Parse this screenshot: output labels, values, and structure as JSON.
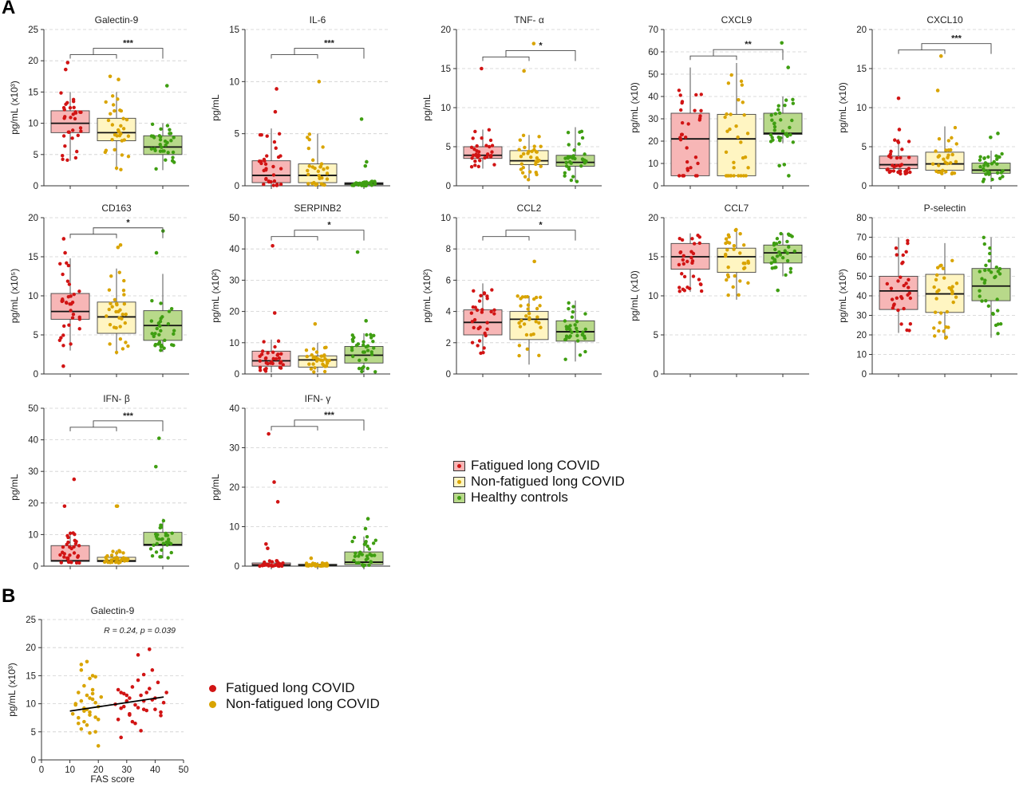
{
  "panel_labels": [
    "A",
    "B"
  ],
  "colors": {
    "fatigued_fill": "#f7b6b6",
    "fatigued_dot": "#d11414",
    "nonfatigued_fill": "#fff5c2",
    "nonfatigued_dot": "#d9a400",
    "healthy_fill": "#b8d98a",
    "healthy_dot": "#3f9e12"
  },
  "legend_a": {
    "items": [
      {
        "label": "Fatigued long COVID",
        "fill": "#f7b6b6",
        "dot": "#d11414"
      },
      {
        "label": "Non-fatigued long COVID",
        "fill": "#fff5c2",
        "dot": "#d9a400"
      },
      {
        "label": "Healthy controls",
        "fill": "#b8d98a",
        "dot": "#3f9e12"
      }
    ]
  },
  "legend_b": {
    "items": [
      {
        "label": "Fatigued long COVID",
        "dot": "#d11414"
      },
      {
        "label": "Non-fatigued long COVID",
        "dot": "#d9a400"
      }
    ]
  },
  "chart_data": [
    {
      "type": "box",
      "title": "Galectin-9",
      "ylabel": "pg/mL (x10³)",
      "ylim": [
        0,
        25
      ],
      "ticks": [
        0,
        5,
        10,
        15,
        20,
        25
      ],
      "groups": [
        "Fatigued long COVID",
        "Non-fatigued long COVID",
        "Healthy controls"
      ],
      "boxes": [
        {
          "q1": 8.5,
          "median": 10,
          "q3": 12,
          "lo": 4,
          "hi": 15
        },
        {
          "q1": 7.2,
          "median": 8.5,
          "q3": 10.8,
          "lo": 2.5,
          "hi": 15
        },
        {
          "q1": 5,
          "median": 6.2,
          "q3": 8,
          "lo": 2.5,
          "hi": 10
        }
      ],
      "outliers": [
        [
          19.7,
          18.6
        ],
        [
          17.5,
          17
        ],
        [
          16
        ]
      ],
      "significance": "***",
      "bracket_y": 22
    },
    {
      "type": "box",
      "title": "IL-6",
      "ylabel": "pg/mL",
      "ylim": [
        0,
        15
      ],
      "ticks": [
        0,
        5,
        10,
        15
      ],
      "groups": [
        "Fatigued long COVID",
        "Non-fatigued long COVID",
        "Healthy controls"
      ],
      "boxes": [
        {
          "q1": 0.3,
          "median": 1,
          "q3": 2.4,
          "lo": 0,
          "hi": 5.5
        },
        {
          "q1": 0.3,
          "median": 1,
          "q3": 2.1,
          "lo": 0,
          "hi": 5
        },
        {
          "q1": 0.1,
          "median": 0.2,
          "q3": 0.3,
          "lo": 0,
          "hi": 0.5
        }
      ],
      "outliers": [
        [
          9.3,
          7.1
        ],
        [
          10
        ],
        [
          6.4,
          2.3,
          1.9
        ]
      ],
      "significance": "***",
      "bracket_y": 13.2
    },
    {
      "type": "box",
      "title": "TNF- α",
      "ylabel": "pg/mL",
      "ylim": [
        0,
        20
      ],
      "ticks": [
        0,
        5,
        10,
        15,
        20
      ],
      "groups": [
        "Fatigued long COVID",
        "Non-fatigued long COVID",
        "Healthy controls"
      ],
      "boxes": [
        {
          "q1": 3.5,
          "median": 3.9,
          "q3": 5,
          "lo": 2.2,
          "hi": 7.2
        },
        {
          "q1": 2.7,
          "median": 3.2,
          "q3": 4.5,
          "lo": 0.6,
          "hi": 6.5
        },
        {
          "q1": 2.5,
          "median": 3,
          "q3": 3.9,
          "lo": 0.5,
          "hi": 7.5
        }
      ],
      "outliers": [
        [
          15
        ],
        [
          14.7,
          18.2
        ],
        []
      ],
      "significance": "*",
      "bracket_y": 17.3
    },
    {
      "type": "box",
      "title": "CXCL9",
      "ylabel": "pg/mL (x10)",
      "ylim": [
        0,
        70
      ],
      "ticks": [
        0,
        10,
        20,
        30,
        40,
        50,
        60,
        70
      ],
      "groups": [
        "Fatigued long COVID",
        "Non-fatigued long COVID",
        "Healthy controls"
      ],
      "boxes": [
        {
          "q1": 4.5,
          "median": 21,
          "q3": 32.5,
          "lo": 4.5,
          "hi": 53
        },
        {
          "q1": 4.5,
          "median": 21,
          "q3": 32,
          "lo": 4.5,
          "hi": 55
        },
        {
          "q1": 23,
          "median": 23.5,
          "q3": 32.5,
          "lo": 19,
          "hi": 40
        }
      ],
      "outliers": [
        [],
        [],
        [
          64,
          53,
          4.5,
          9,
          9.5
        ]
      ],
      "significance": "**",
      "bracket_y": 61
    },
    {
      "type": "box",
      "title": "CXCL10",
      "ylabel": "pg/mL (x10)",
      "ylim": [
        0,
        20
      ],
      "ticks": [
        0,
        5,
        10,
        15,
        20
      ],
      "groups": [
        "Fatigued long COVID",
        "Non-fatigued long COVID",
        "Healthy controls"
      ],
      "boxes": [
        {
          "q1": 2.2,
          "median": 2.7,
          "q3": 3.8,
          "lo": 1.5,
          "hi": 6
        },
        {
          "q1": 2,
          "median": 2.8,
          "q3": 4.3,
          "lo": 1.5,
          "hi": 7.6
        },
        {
          "q1": 1.6,
          "median": 2,
          "q3": 2.9,
          "lo": 0.5,
          "hi": 4.5
        }
      ],
      "outliers": [
        [
          11.2,
          7.2
        ],
        [
          16.6,
          12.2
        ],
        [
          6.7,
          6.2
        ]
      ],
      "significance": "***",
      "bracket_y": 18.2
    },
    {
      "type": "box",
      "title": "CD163",
      "ylabel": "pg/mL (x10⁵)",
      "ylim": [
        0,
        20
      ],
      "ticks": [
        0,
        5,
        10,
        15,
        20
      ],
      "groups": [
        "Fatigued long COVID",
        "Non-fatigued long COVID",
        "Healthy controls"
      ],
      "boxes": [
        {
          "q1": 7,
          "median": 8,
          "q3": 10.3,
          "lo": 3,
          "hi": 14.8
        },
        {
          "q1": 5.2,
          "median": 7.3,
          "q3": 9.2,
          "lo": 2.5,
          "hi": 13.5
        },
        {
          "q1": 4.3,
          "median": 6.2,
          "q3": 8.1,
          "lo": 2.8,
          "hi": 12.8
        }
      ],
      "outliers": [
        [
          17.3,
          15.5,
          1
        ],
        [
          16.5,
          16.2
        ],
        [
          18.3,
          15.5
        ]
      ],
      "significance": "*",
      "bracket_y": 18.7
    },
    {
      "type": "box",
      "title": "SERPINB2",
      "ylabel": "pg/mL (x10²)",
      "ylim": [
        0,
        50
      ],
      "ticks": [
        0,
        10,
        20,
        30,
        40,
        50
      ],
      "groups": [
        "Fatigued long COVID",
        "Non-fatigued long COVID",
        "Healthy controls"
      ],
      "boxes": [
        {
          "q1": 2.5,
          "median": 4.2,
          "q3": 7.3,
          "lo": 0.5,
          "hi": 11
        },
        {
          "q1": 2.2,
          "median": 4.5,
          "q3": 5.8,
          "lo": 0.5,
          "hi": 10
        },
        {
          "q1": 3.5,
          "median": 6,
          "q3": 8.8,
          "lo": 0.5,
          "hi": 13
        }
      ],
      "outliers": [
        [
          41,
          19.5
        ],
        [
          16
        ],
        [
          39,
          17
        ]
      ],
      "significance": "*",
      "bracket_y": 46
    },
    {
      "type": "box",
      "title": "CCL2",
      "ylabel": "pg/mL (x10²)",
      "ylim": [
        0,
        10
      ],
      "ticks": [
        0,
        2,
        4,
        6,
        8,
        10
      ],
      "groups": [
        "Fatigued long COVID",
        "Non-fatigued long COVID",
        "Healthy controls"
      ],
      "boxes": [
        {
          "q1": 2.5,
          "median": 3.3,
          "q3": 4.1,
          "lo": 1.3,
          "hi": 5.8
        },
        {
          "q1": 2.2,
          "median": 3.5,
          "q3": 4,
          "lo": 0.6,
          "hi": 5
        },
        {
          "q1": 2.1,
          "median": 2.7,
          "q3": 3.4,
          "lo": 0.8,
          "hi": 4.7
        }
      ],
      "outliers": [
        [],
        [
          7.2
        ],
        []
      ],
      "significance": "*",
      "bracket_y": 9.2
    },
    {
      "type": "box",
      "title": "CCL7",
      "ylabel": "pg/mL (x10)",
      "ylim": [
        0,
        20
      ],
      "ticks": [
        0,
        5,
        10,
        15,
        20
      ],
      "groups": [
        "Fatigued long COVID",
        "Non-fatigued long COVID",
        "Healthy controls"
      ],
      "boxes": [
        {
          "q1": 13.4,
          "median": 15,
          "q3": 16.7,
          "lo": 10.5,
          "hi": 18
        },
        {
          "q1": 13,
          "median": 15,
          "q3": 16.1,
          "lo": 9.5,
          "hi": 18.5
        },
        {
          "q1": 14.2,
          "median": 15.5,
          "q3": 16.5,
          "lo": 12.5,
          "hi": 18
        }
      ],
      "outliers": [
        [],
        [],
        [
          10.7
        ]
      ],
      "significance": "",
      "bracket_y": null
    },
    {
      "type": "box",
      "title": "P-selectin",
      "ylabel": "pg/mL (x10³)",
      "ylim": [
        0,
        80
      ],
      "ticks": [
        0,
        10,
        20,
        30,
        40,
        50,
        60,
        70,
        80
      ],
      "groups": [
        "Fatigued long COVID",
        "Non-fatigued long COVID",
        "Healthy controls"
      ],
      "boxes": [
        {
          "q1": 33,
          "median": 42.5,
          "q3": 50,
          "lo": 21,
          "hi": 70
        },
        {
          "q1": 31.5,
          "median": 41,
          "q3": 51,
          "lo": 18,
          "hi": 67
        },
        {
          "q1": 37.5,
          "median": 45,
          "q3": 54,
          "lo": 18.5,
          "hi": 70
        }
      ],
      "outliers": [
        [],
        [],
        []
      ],
      "significance": "",
      "bracket_y": null
    },
    {
      "type": "box",
      "title": "IFN- β",
      "ylabel": "pg/mL",
      "ylim": [
        0,
        50
      ],
      "ticks": [
        0,
        10,
        20,
        30,
        40,
        50
      ],
      "groups": [
        "Fatigued long COVID",
        "Non-fatigued long COVID",
        "Healthy controls"
      ],
      "boxes": [
        {
          "q1": 1.5,
          "median": 1.7,
          "q3": 6.5,
          "lo": 1,
          "hi": 11
        },
        {
          "q1": 1.4,
          "median": 1.7,
          "q3": 2.8,
          "lo": 1,
          "hi": 5
        },
        {
          "q1": 6.5,
          "median": 6.8,
          "q3": 10.7,
          "lo": 2.5,
          "hi": 15
        }
      ],
      "outliers": [
        [
          27.5,
          19
        ],
        [
          19,
          19
        ],
        [
          40.5,
          31.5
        ]
      ],
      "significance": "***",
      "bracket_y": 46
    },
    {
      "type": "box",
      "title": "IFN- γ",
      "ylabel": "pg/mL",
      "ylim": [
        0,
        40
      ],
      "ticks": [
        0,
        10,
        20,
        30,
        40
      ],
      "groups": [
        "Fatigued long COVID",
        "Non-fatigued long COVID",
        "Healthy controls"
      ],
      "boxes": [
        {
          "q1": 0.1,
          "median": 0.3,
          "q3": 0.8,
          "lo": 0,
          "hi": 1.5
        },
        {
          "q1": 0.1,
          "median": 0.2,
          "q3": 0.5,
          "lo": 0,
          "hi": 1
        },
        {
          "q1": 0.4,
          "median": 1,
          "q3": 3.6,
          "lo": 0,
          "hi": 7.5
        }
      ],
      "outliers": [
        [
          33.5,
          21.3,
          16.3,
          5.6,
          4.5
        ],
        [
          2
        ],
        [
          12,
          9.5
        ]
      ],
      "significance": "***",
      "bracket_y": 37
    },
    {
      "type": "scatter",
      "title": "Galectin-9",
      "xlabel": "FAS score",
      "ylabel": "pg/mL (x10³)",
      "xlim": [
        0,
        50
      ],
      "ylim": [
        0,
        25
      ],
      "xticks": [
        0,
        10,
        20,
        30,
        40,
        50
      ],
      "yticks": [
        0,
        5,
        10,
        15,
        20,
        25
      ],
      "annotation": "R = 0.24, p = 0.039",
      "fit_line": {
        "x": [
          10,
          43
        ],
        "y": [
          8.7,
          11.2
        ]
      },
      "series": [
        {
          "name": "Fatigued long COVID",
          "x": [
            27,
            28,
            29,
            30,
            31,
            32,
            33,
            34,
            35,
            36,
            37,
            38,
            39,
            40,
            41,
            42,
            43,
            27,
            29,
            31,
            33,
            35,
            37,
            26,
            28,
            30,
            32,
            34,
            36,
            38,
            40,
            42,
            36,
            39,
            34,
            28,
            31,
            44
          ],
          "y": [
            12.5,
            9.2,
            11.8,
            10.5,
            8,
            13,
            9.8,
            18.7,
            11.5,
            15.2,
            12,
            19.7,
            10.7,
            9,
            13.8,
            8.5,
            10.2,
            7.2,
            9.5,
            11,
            6.5,
            5.2,
            8.8,
            9.9,
            4,
            11.5,
            6.8,
            14.2,
            9,
            12.7,
            11,
            7.9,
            10.5,
            16,
            9.3,
            12,
            8.2,
            12
          ]
        },
        {
          "name": "Non-fatigued long COVID",
          "x": [
            11,
            12,
            13,
            14,
            15,
            16,
            17,
            18,
            19,
            20,
            21,
            12,
            13,
            14,
            15,
            16,
            17,
            18,
            19,
            20,
            13,
            14,
            15,
            16,
            17,
            18,
            19,
            20,
            16,
            17,
            18,
            14,
            19,
            17,
            15
          ],
          "y": [
            8.2,
            10,
            6.5,
            17,
            9.2,
            11.5,
            8.5,
            15,
            10.2,
            7.2,
            11.2,
            9.8,
            12,
            5.5,
            8.7,
            17.5,
            14.5,
            10.8,
            5,
            9.5,
            7.5,
            10.5,
            13.2,
            6.2,
            8,
            11.8,
            14.8,
            2.5,
            9,
            4.8,
            12.5,
            16,
            7.6,
            11,
            6.8
          ]
        }
      ]
    }
  ]
}
